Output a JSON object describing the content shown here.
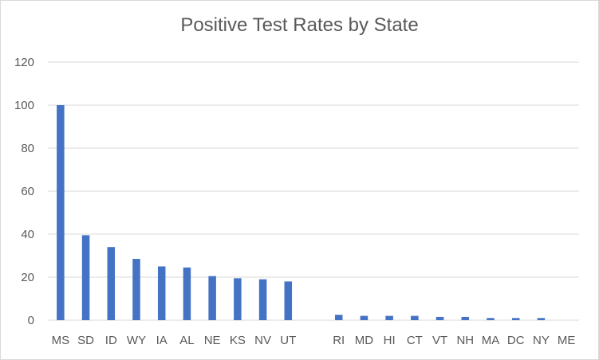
{
  "chart_data": {
    "type": "bar",
    "title": "Positive Test Rates by State",
    "xlabel": "",
    "ylabel": "",
    "ylim": [
      0,
      120
    ],
    "yticks": [
      0,
      20,
      40,
      60,
      80,
      100,
      120
    ],
    "grid": true,
    "legend": "none",
    "bar_color": "#4472c4",
    "categories": [
      "MS",
      "SD",
      "ID",
      "WY",
      "IA",
      "AL",
      "NE",
      "KS",
      "NV",
      "UT",
      "",
      "RI",
      "MD",
      "HI",
      "CT",
      "VT",
      "NH",
      "MA",
      "DC",
      "NY",
      "ME"
    ],
    "values": [
      100,
      39.5,
      34,
      28.5,
      25,
      24.5,
      20.5,
      19.5,
      19,
      18,
      null,
      2.5,
      2,
      2,
      2,
      1.5,
      1.5,
      1,
      1,
      1,
      0
    ]
  }
}
